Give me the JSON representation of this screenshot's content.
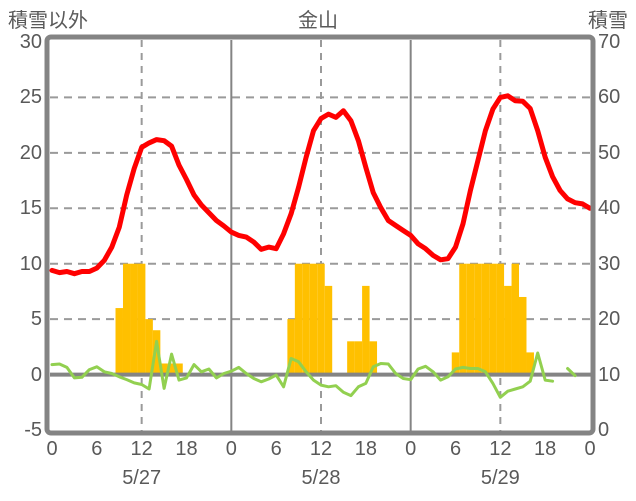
{
  "header": {
    "left_axis_title": "積雪以外",
    "chart_title": "金山",
    "right_axis_title": "積雪"
  },
  "colors": {
    "red_line": "#FF0000",
    "green_line": "#92D050",
    "orange_bar": "#FFC000",
    "frame_gray": "#848484",
    "gridline_gray": "#9A9A9A",
    "text_gray": "#595959"
  },
  "chart_data": {
    "type": "mixed",
    "title": "金山",
    "x_unit": "hour",
    "x_range_hours": [
      0,
      72
    ],
    "left_axis": {
      "title": "積雪以外",
      "min": -5,
      "max": 30,
      "ticks": [
        30,
        25,
        20,
        15,
        10,
        5,
        0,
        -5
      ]
    },
    "right_axis": {
      "title": "積雪",
      "min": 0,
      "max": 70,
      "ticks": [
        70,
        60,
        50,
        40,
        30,
        20,
        10,
        0
      ]
    },
    "x_axis": {
      "hour_ticks": [
        {
          "t": 0,
          "label": "0"
        },
        {
          "t": 6,
          "label": "6"
        },
        {
          "t": 12,
          "label": "12"
        },
        {
          "t": 18,
          "label": "18"
        },
        {
          "t": 24,
          "label": "0"
        },
        {
          "t": 30,
          "label": "6"
        },
        {
          "t": 36,
          "label": "12"
        },
        {
          "t": 42,
          "label": "18"
        },
        {
          "t": 48,
          "label": "0"
        },
        {
          "t": 54,
          "label": "6"
        },
        {
          "t": 60,
          "label": "12"
        },
        {
          "t": 66,
          "label": "18"
        },
        {
          "t": 72,
          "label": "0"
        }
      ],
      "date_labels": [
        {
          "t": 12,
          "label": "5/27"
        },
        {
          "t": 36,
          "label": "5/28"
        },
        {
          "t": 60,
          "label": "5/29"
        }
      ]
    },
    "gridlines": {
      "horizontal_dashed_values": [
        25,
        20,
        15,
        10,
        5
      ],
      "zero_line_value": 0,
      "vertical_dashed_hours": [
        12,
        36,
        60
      ],
      "vertical_solid_hours": [
        24,
        48
      ]
    },
    "series": [
      {
        "name": "red-line",
        "type": "line",
        "axis": "left",
        "color": "#FF0000",
        "width": 5,
        "values": [
          9.4,
          9.2,
          9.3,
          9.1,
          9.3,
          9.3,
          9.6,
          10.3,
          11.5,
          13.3,
          16.2,
          18.6,
          20.5,
          20.9,
          21.2,
          21.1,
          20.6,
          18.9,
          17.6,
          16.2,
          15.3,
          14.6,
          13.9,
          13.4,
          12.85,
          12.55,
          12.4,
          11.95,
          11.3,
          11.5,
          11.35,
          12.7,
          14.5,
          16.9,
          19.6,
          22.0,
          23.1,
          23.5,
          23.2,
          23.8,
          22.9,
          21.1,
          18.7,
          16.4,
          15.05,
          13.9,
          13.45,
          13.0,
          12.55,
          11.8,
          11.35,
          10.75,
          10.35,
          10.45,
          11.5,
          13.6,
          16.6,
          19.3,
          22.0,
          23.95,
          25.0,
          25.15,
          24.7,
          24.65,
          24.0,
          22.0,
          19.6,
          17.85,
          16.6,
          15.85,
          15.5,
          15.4,
          15.0
        ]
      },
      {
        "name": "green-line",
        "type": "line",
        "axis": "left",
        "color": "#92D050",
        "width": 3,
        "values": [
          0.9,
          0.95,
          0.65,
          -0.3,
          -0.25,
          0.45,
          0.7,
          0.25,
          0.1,
          -0.2,
          -0.45,
          -0.75,
          -0.9,
          -1.3,
          3.0,
          -1.25,
          1.85,
          -0.5,
          -0.3,
          0.9,
          0.25,
          0.5,
          -0.3,
          0.1,
          0.3,
          0.65,
          0.1,
          -0.35,
          -0.65,
          -0.4,
          -0.05,
          -1.1,
          1.45,
          1.15,
          0.25,
          -0.5,
          -0.95,
          -1.1,
          -1.0,
          -1.6,
          -1.9,
          -1.1,
          -0.8,
          0.7,
          1.0,
          0.95,
          0.1,
          -0.35,
          -0.45,
          0.5,
          0.75,
          0.25,
          -0.5,
          -0.2,
          0.5,
          0.65,
          0.55,
          0.55,
          0.25,
          -0.8,
          -2.05,
          -1.5,
          -1.3,
          -1.1,
          -0.6,
          1.95,
          -0.5,
          -0.6,
          null,
          0.55,
          -0.1,
          null,
          null
        ]
      },
      {
        "name": "orange-bars",
        "type": "bar",
        "axis": "left",
        "color": "#FFC000",
        "bars": [
          {
            "t": 9,
            "v": 6
          },
          {
            "t": 10,
            "v": 10
          },
          {
            "t": 11,
            "v": 10
          },
          {
            "t": 12,
            "v": 10
          },
          {
            "t": 13,
            "v": 5
          },
          {
            "t": 14,
            "v": 4
          },
          {
            "t": 15,
            "v": 1
          },
          {
            "t": 16,
            "v": 1
          },
          {
            "t": 17,
            "v": 1
          },
          {
            "t": 32,
            "v": 5
          },
          {
            "t": 33,
            "v": 10
          },
          {
            "t": 34,
            "v": 10
          },
          {
            "t": 35,
            "v": 10
          },
          {
            "t": 36,
            "v": 10
          },
          {
            "t": 37,
            "v": 8
          },
          {
            "t": 40,
            "v": 3
          },
          {
            "t": 41,
            "v": 3
          },
          {
            "t": 42,
            "v": 8
          },
          {
            "t": 43,
            "v": 3
          },
          {
            "t": 54,
            "v": 2
          },
          {
            "t": 55,
            "v": 10
          },
          {
            "t": 56,
            "v": 10
          },
          {
            "t": 57,
            "v": 10
          },
          {
            "t": 58,
            "v": 10
          },
          {
            "t": 59,
            "v": 10
          },
          {
            "t": 60,
            "v": 10
          },
          {
            "t": 61,
            "v": 8
          },
          {
            "t": 62,
            "v": 10
          },
          {
            "t": 63,
            "v": 7
          },
          {
            "t": 64,
            "v": 2
          }
        ]
      }
    ]
  }
}
